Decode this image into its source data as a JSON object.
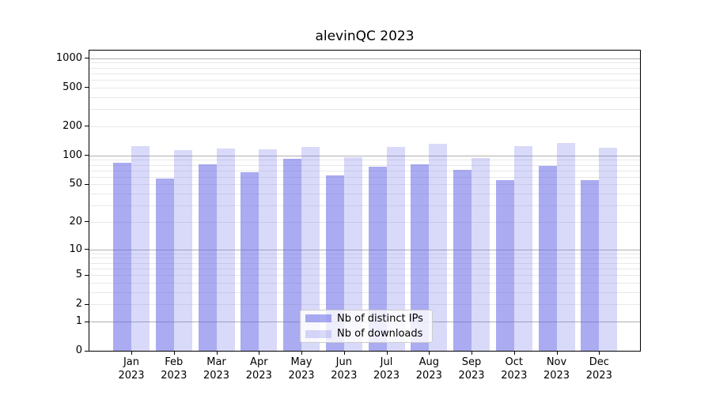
{
  "chart_data": {
    "type": "bar",
    "title": "alevinQC 2023",
    "categories": [
      "Jan",
      "Feb",
      "Mar",
      "Apr",
      "May",
      "Jun",
      "Jul",
      "Aug",
      "Sep",
      "Oct",
      "Nov",
      "Dec"
    ],
    "category_year": "2023",
    "series": [
      {
        "name": "Nb of distinct IPs",
        "color": "rgba(102,102,230,0.55)",
        "values": [
          83,
          57,
          80,
          67,
          92,
          62,
          76,
          81,
          71,
          55,
          78,
          55
        ]
      },
      {
        "name": "Nb of downloads",
        "color": "rgba(102,102,230,0.25)",
        "values": [
          125,
          112,
          118,
          114,
          121,
          96,
          121,
          131,
          93,
          124,
          133,
          119
        ]
      }
    ],
    "xlabel": "",
    "ylabel": "",
    "y_scale": "log1p",
    "y_ticks": [
      0,
      1,
      2,
      5,
      10,
      20,
      50,
      100,
      200,
      500,
      1000
    ],
    "ylim": [
      0,
      1220
    ],
    "grid": "on",
    "legend_position": "lower center"
  },
  "colors": {
    "major_grid": "#b0b0b0",
    "minor_grid": "#e8e8e8",
    "spine": "#000000",
    "text": "#000000",
    "background": "#ffffff"
  }
}
